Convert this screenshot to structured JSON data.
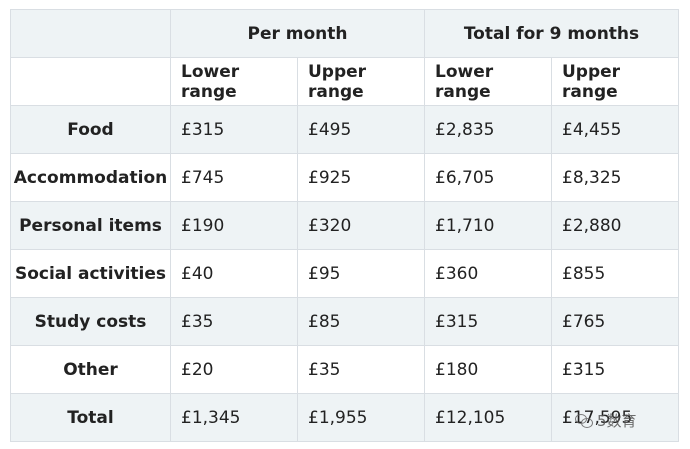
{
  "table": {
    "group_headers": [
      "Per month",
      "Total for 9 months"
    ],
    "sub_headers": [
      "Lower range",
      "Upper range",
      "Lower range",
      "Upper range"
    ],
    "rows": [
      {
        "label": "Food",
        "values": [
          "£315",
          "£495",
          "£2,835",
          "£4,455"
        ]
      },
      {
        "label": "Accommodation",
        "values": [
          "£745",
          "£925",
          "£6,705",
          "£8,325"
        ]
      },
      {
        "label": "Personal items",
        "values": [
          "£190",
          "£320",
          "£1,710",
          "£2,880"
        ]
      },
      {
        "label": "Social activities",
        "values": [
          "£40",
          "£95",
          "£360",
          "£855"
        ]
      },
      {
        "label": "Study costs",
        "values": [
          "£35",
          "£85",
          "£315",
          "£765"
        ]
      },
      {
        "label": "Other",
        "values": [
          "£20",
          "£35",
          "£180",
          "£315"
        ]
      },
      {
        "label": "Total",
        "values": [
          "£1,345",
          "£1,955",
          "£12,105",
          "£17,595"
        ]
      }
    ]
  },
  "watermark": {
    "text": "5数育",
    "icon": "wechat-icon"
  },
  "colors": {
    "shade": "#eef3f5",
    "border": "#d9dee3"
  }
}
